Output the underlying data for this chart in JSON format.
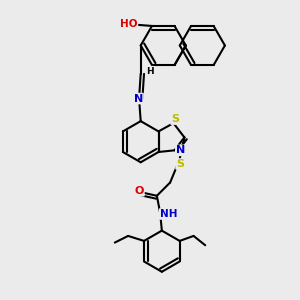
{
  "background_color": "#ebebeb",
  "atom_colors": {
    "C": "#000000",
    "N": "#0000cc",
    "O": "#dd0000",
    "S": "#bbbb00",
    "H": "#000000"
  },
  "bond_color": "#000000",
  "bond_width": 1.5,
  "figsize": [
    3.0,
    3.0
  ],
  "dpi": 100
}
